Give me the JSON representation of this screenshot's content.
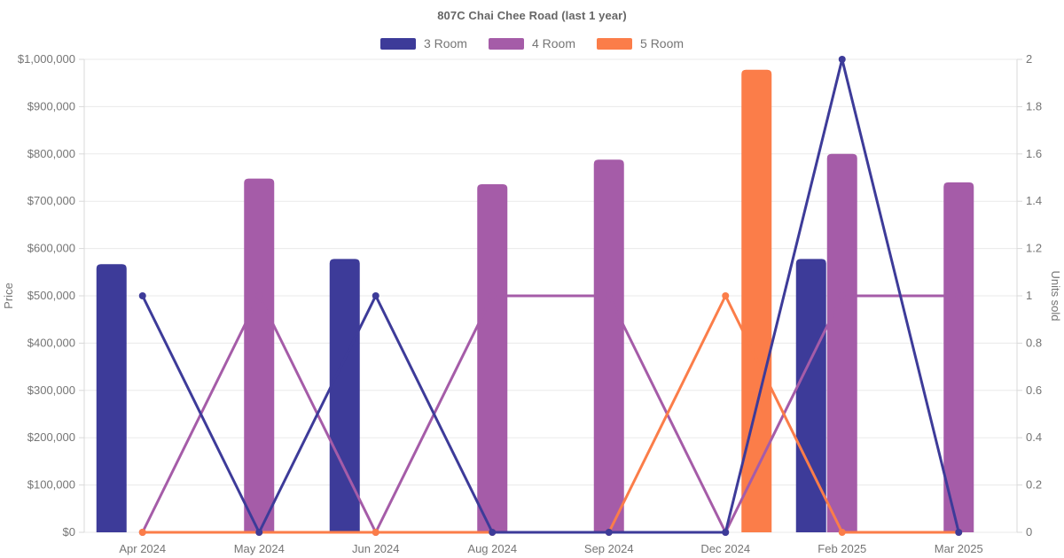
{
  "chart_data": {
    "type": "combo-bar-line",
    "title": "807C Chai Chee Road (last 1 year)",
    "categories": [
      "Apr 2024",
      "May 2024",
      "Jun 2024",
      "Aug 2024",
      "Sep 2024",
      "Dec 2024",
      "Feb 2025",
      "Mar 2025"
    ],
    "series": [
      {
        "name": "3 Room",
        "color": "#3d3b99",
        "bar_prices": [
          567000,
          null,
          578000,
          null,
          null,
          null,
          578000,
          null
        ],
        "units_sold": [
          1,
          0,
          1,
          0,
          0,
          0,
          2,
          0
        ]
      },
      {
        "name": "4 Room",
        "color": "#a55ca8",
        "bar_prices": [
          null,
          748000,
          null,
          736000,
          788000,
          null,
          800000,
          740000
        ],
        "units_sold": [
          0,
          1,
          0,
          1,
          1,
          0,
          1,
          1
        ]
      },
      {
        "name": "5 Room",
        "color": "#fb7d49",
        "bar_prices": [
          null,
          null,
          null,
          null,
          null,
          978000,
          null,
          null
        ],
        "units_sold": [
          0,
          0,
          0,
          0,
          0,
          1,
          0,
          0
        ]
      }
    ],
    "left_axis": {
      "label": "Price",
      "min": 0,
      "max": 1000000,
      "step": 100000,
      "tick_prefix": "$"
    },
    "right_axis": {
      "label": "Units sold",
      "min": 0,
      "max": 2,
      "step": 0.2
    },
    "grid": true,
    "legend_position": "top",
    "colors": {
      "grid": "#eaeaea",
      "axis_line": "#d9d9d9",
      "tick_text": "#757575",
      "title_text": "#666666"
    }
  }
}
